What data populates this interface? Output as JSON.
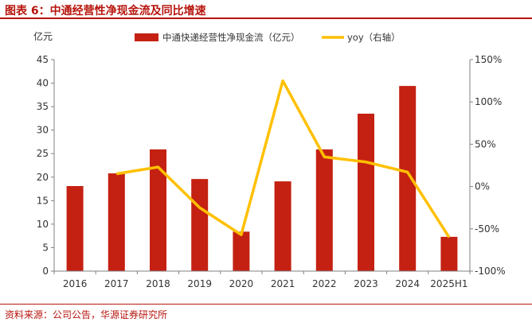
{
  "header": {
    "title": "图表 6：中通经营性净现金流及同比增速"
  },
  "footer": {
    "source": "资料来源：公司公告，华源证券研究所"
  },
  "chart_data": {
    "type": "bar",
    "categories": [
      "2016",
      "2017",
      "2018",
      "2019",
      "2020",
      "2021",
      "2022",
      "2023",
      "2024",
      "2025H1"
    ],
    "series": [
      {
        "name": "中通快递经营性净现金流（亿元）",
        "type": "bar",
        "axis": "left",
        "color": "#c42112",
        "values": [
          18.1,
          20.8,
          25.9,
          19.6,
          8.4,
          19.1,
          25.9,
          33.5,
          39.4,
          7.3
        ]
      },
      {
        "name": "yoy（右轴）",
        "type": "line",
        "axis": "right",
        "color": "#ffc000",
        "values": [
          null,
          15,
          23,
          -25,
          -57,
          125,
          35,
          29,
          17,
          -60
        ]
      }
    ],
    "left_axis": {
      "label": "亿元",
      "min": 0,
      "max": 45,
      "ticks": [
        "0",
        "5",
        "10",
        "15",
        "20",
        "25",
        "30",
        "35",
        "40",
        "45"
      ]
    },
    "right_axis": {
      "min": -100,
      "max": 150,
      "ticks": [
        "-100%",
        "-50%",
        "0%",
        "50%",
        "100%",
        "150%"
      ]
    },
    "legend_position": "top",
    "grid": false
  }
}
